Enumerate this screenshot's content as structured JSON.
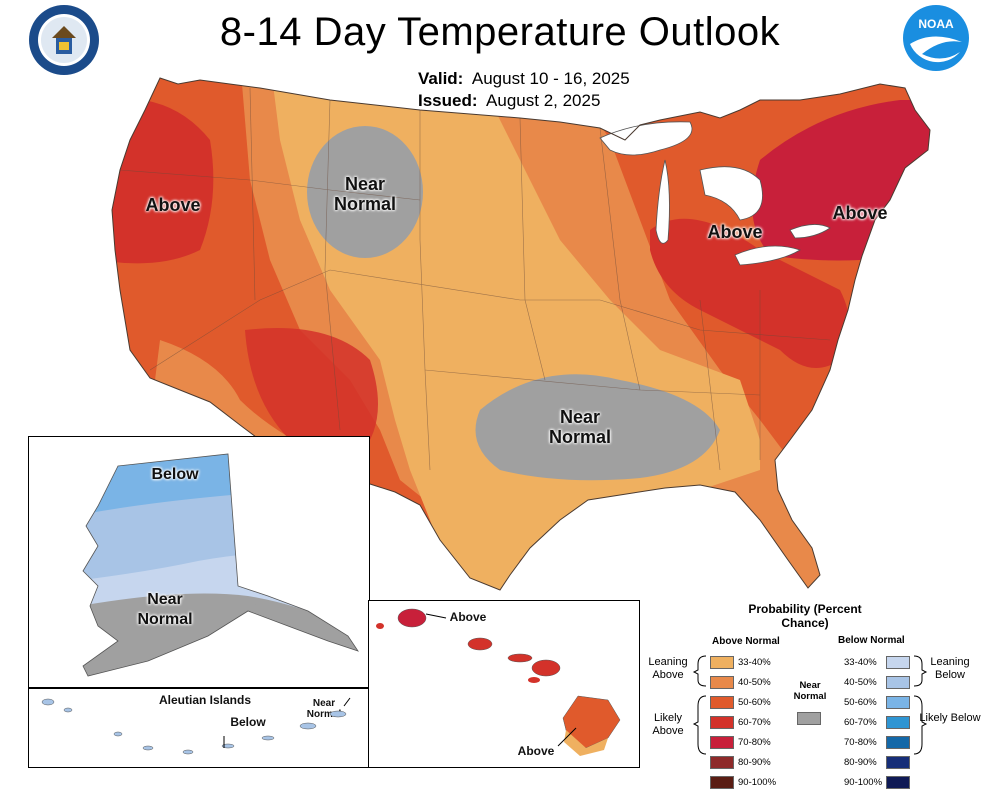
{
  "header": {
    "title": "8-14 Day Temperature Outlook",
    "valid_label": "Valid:",
    "valid_value": "August 10 - 16, 2025",
    "issued_label": "Issued:",
    "issued_value": "August 2, 2025",
    "left_logo": "commerce-seal-icon",
    "right_logo": "noaa-logo-icon"
  },
  "conus": {
    "labels": {
      "above_west": "Above",
      "near_normal_north": "Near Normal",
      "above_great_lakes": "Above",
      "above_northeast": "Above",
      "near_normal_south": "Near Normal"
    }
  },
  "alaska": {
    "labels": {
      "below": "Below",
      "near_normal": "Near Normal"
    }
  },
  "aleutians": {
    "title": "Aleutian Islands",
    "below": "Below",
    "near_normal": "Near Normal"
  },
  "hawaii": {
    "above_north": "Above",
    "above_south": "Above"
  },
  "legend": {
    "title": "Probability (Percent Chance)",
    "above_header": "Above Normal",
    "below_header": "Below Normal",
    "near_normal": "Near Normal",
    "leaning_above": "Leaning Above",
    "likely_above": "Likely Above",
    "leaning_below": "Leaning Below",
    "likely_below": "Likely Below",
    "above_bins": [
      {
        "label": "33-40%",
        "color": "#efb060"
      },
      {
        "label": "40-50%",
        "color": "#e8894a"
      },
      {
        "label": "50-60%",
        "color": "#e05a2c"
      },
      {
        "label": "60-70%",
        "color": "#d3322a"
      },
      {
        "label": "70-80%",
        "color": "#c8203a"
      },
      {
        "label": "80-90%",
        "color": "#8e2a2a"
      },
      {
        "label": "90-100%",
        "color": "#5a1d14"
      }
    ],
    "below_bins": [
      {
        "label": "33-40%",
        "color": "#c6d6ee"
      },
      {
        "label": "40-50%",
        "color": "#a8c4e6"
      },
      {
        "label": "50-60%",
        "color": "#7ab4e6"
      },
      {
        "label": "60-70%",
        "color": "#2f95d3"
      },
      {
        "label": "70-80%",
        "color": "#1468a8"
      },
      {
        "label": "80-90%",
        "color": "#162e78"
      },
      {
        "label": "90-100%",
        "color": "#0f1a55"
      }
    ],
    "near_normal_color": "#a0a0a0"
  }
}
